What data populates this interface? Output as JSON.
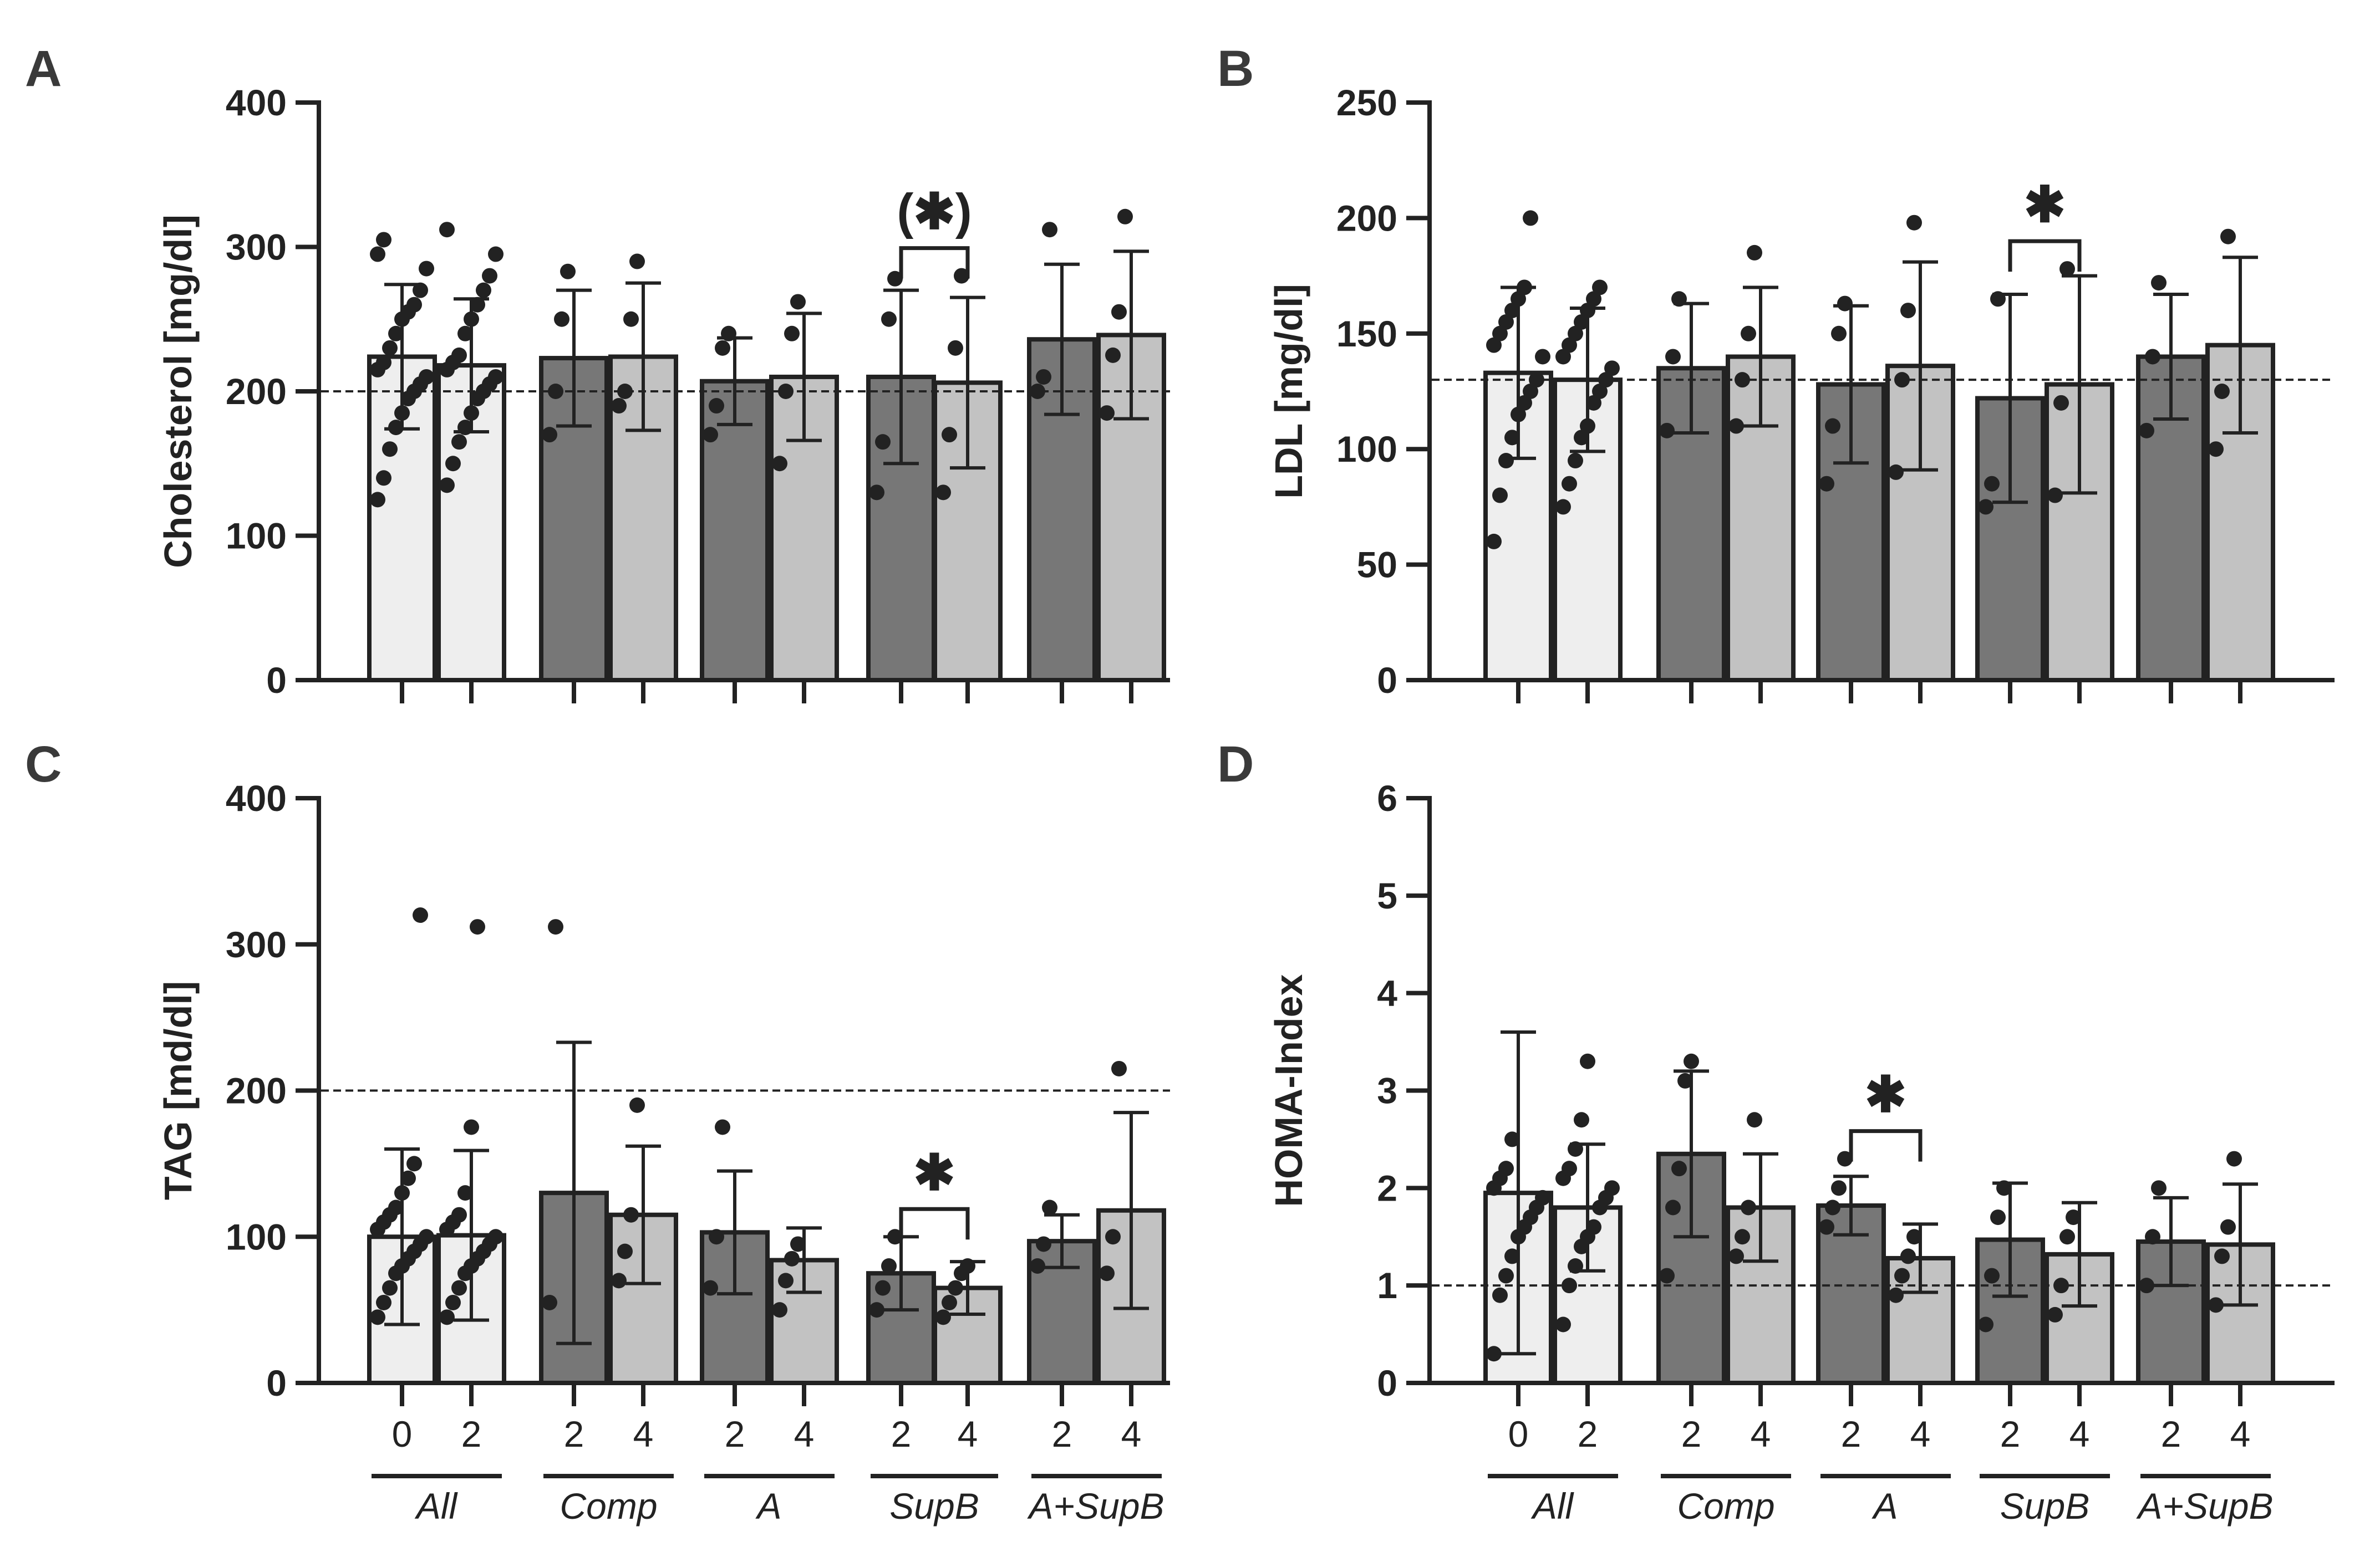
{
  "chart_data": [
    {
      "panel": "A",
      "type": "bar",
      "ylabel": "Cholesterol [mg/dl]",
      "ylim": [
        0,
        400
      ],
      "yticks": [
        0,
        100,
        200,
        300,
        400
      ],
      "reference_line": 200,
      "xtick_labels": [],
      "groups": [],
      "bars": [
        {
          "mean": 224,
          "sd": 50,
          "points": [
            125,
            140,
            160,
            175,
            185,
            195,
            200,
            205,
            210,
            215,
            220,
            230,
            240,
            250,
            255,
            260,
            270,
            285,
            295,
            305
          ]
        },
        {
          "mean": 218,
          "sd": 46,
          "points": [
            135,
            150,
            165,
            175,
            185,
            195,
            200,
            205,
            210,
            215,
            220,
            225,
            240,
            250,
            260,
            270,
            280,
            295,
            312
          ]
        },
        {
          "mean": 223,
          "sd": 47,
          "points": [
            170,
            200,
            250,
            283
          ]
        },
        {
          "mean": 224,
          "sd": 51,
          "points": [
            190,
            200,
            250,
            290
          ]
        },
        {
          "mean": 207,
          "sd": 30,
          "points": [
            170,
            190,
            230,
            240
          ]
        },
        {
          "mean": 210,
          "sd": 44,
          "points": [
            150,
            200,
            240,
            262
          ]
        },
        {
          "mean": 210,
          "sd": 60,
          "points": [
            130,
            165,
            250,
            278
          ]
        },
        {
          "mean": 206,
          "sd": 59,
          "points": [
            130,
            170,
            230,
            280
          ]
        },
        {
          "mean": 236,
          "sd": 52,
          "points": [
            200,
            210,
            312
          ]
        },
        {
          "mean": 239,
          "sd": 58,
          "points": [
            185,
            225,
            255,
            321
          ]
        }
      ],
      "significance": [
        {
          "from": 6,
          "to": 7,
          "label": "(✱)"
        }
      ]
    },
    {
      "panel": "B",
      "type": "bar",
      "ylabel": "LDL [mg/dl]",
      "ylim": [
        0,
        250
      ],
      "yticks": [
        0,
        50,
        100,
        150,
        200,
        250
      ],
      "reference_line": 130,
      "xtick_labels": [],
      "groups": [],
      "bars": [
        {
          "mean": 133,
          "sd": 37,
          "points": [
            60,
            80,
            95,
            105,
            115,
            120,
            125,
            130,
            140,
            145,
            150,
            155,
            160,
            165,
            170,
            200
          ]
        },
        {
          "mean": 130,
          "sd": 31,
          "points": [
            75,
            85,
            95,
            105,
            110,
            120,
            125,
            130,
            135,
            140,
            145,
            150,
            155,
            160,
            165,
            170
          ]
        },
        {
          "mean": 135,
          "sd": 28,
          "points": [
            108,
            140,
            165
          ]
        },
        {
          "mean": 140,
          "sd": 30,
          "points": [
            110,
            130,
            150,
            185
          ]
        },
        {
          "mean": 128,
          "sd": 34,
          "points": [
            85,
            110,
            150,
            163
          ]
        },
        {
          "mean": 136,
          "sd": 45,
          "points": [
            90,
            130,
            160,
            198
          ]
        },
        {
          "mean": 122,
          "sd": 45,
          "points": [
            75,
            85,
            165
          ]
        },
        {
          "mean": 128,
          "sd": 47,
          "points": [
            80,
            120,
            178
          ]
        },
        {
          "mean": 140,
          "sd": 27,
          "points": [
            108,
            140,
            172
          ]
        },
        {
          "mean": 145,
          "sd": 38,
          "points": [
            100,
            125,
            192
          ]
        }
      ],
      "significance": [
        {
          "from": 6,
          "to": 7,
          "label": "✱"
        }
      ]
    },
    {
      "panel": "C",
      "type": "bar",
      "ylabel": "TAG [md/dl]",
      "ylim": [
        0,
        400
      ],
      "yticks": [
        0,
        100,
        200,
        300,
        400
      ],
      "reference_line": 200,
      "xtick_labels": [
        "0",
        "2",
        "2",
        "4",
        "2",
        "4",
        "2",
        "4",
        "2",
        "4"
      ],
      "groups": [
        "All",
        "Comp",
        "A",
        "SupB",
        "A+SupB"
      ],
      "bars": [
        {
          "mean": 100,
          "sd": 60,
          "points": [
            45,
            55,
            65,
            75,
            80,
            85,
            90,
            95,
            100,
            105,
            110,
            115,
            120,
            130,
            140,
            150,
            320
          ]
        },
        {
          "mean": 101,
          "sd": 58,
          "points": [
            45,
            55,
            65,
            75,
            80,
            85,
            90,
            95,
            100,
            105,
            110,
            115,
            130,
            175,
            312
          ]
        },
        {
          "mean": 130,
          "sd": 103,
          "points": [
            55,
            312
          ]
        },
        {
          "mean": 115,
          "sd": 47,
          "points": [
            70,
            90,
            115,
            190
          ]
        },
        {
          "mean": 103,
          "sd": 42,
          "points": [
            65,
            100,
            175
          ]
        },
        {
          "mean": 84,
          "sd": 22,
          "points": [
            50,
            70,
            85,
            95
          ]
        },
        {
          "mean": 75,
          "sd": 25,
          "points": [
            50,
            65,
            80,
            100
          ]
        },
        {
          "mean": 65,
          "sd": 18,
          "points": [
            45,
            55,
            65,
            75,
            80
          ]
        },
        {
          "mean": 97,
          "sd": 18,
          "points": [
            80,
            95,
            120
          ]
        },
        {
          "mean": 118,
          "sd": 67,
          "points": [
            75,
            100,
            215
          ]
        }
      ],
      "significance": [
        {
          "from": 6,
          "to": 7,
          "label": "✱"
        }
      ]
    },
    {
      "panel": "D",
      "type": "bar",
      "ylabel": "HOMA-Index",
      "ylim": [
        0,
        6
      ],
      "yticks": [
        0,
        1,
        2,
        3,
        4,
        5,
        6
      ],
      "reference_line": 1,
      "xtick_labels": [
        "0",
        "2",
        "2",
        "4",
        "2",
        "4",
        "2",
        "4",
        "2",
        "4"
      ],
      "groups": [
        "All",
        "Comp",
        "A",
        "SupB",
        "A+SupB"
      ],
      "bars": [
        {
          "mean": 1.95,
          "sd": 1.65,
          "points": [
            0.3,
            0.9,
            1.1,
            1.3,
            1.5,
            1.6,
            1.7,
            1.8,
            1.9,
            2.0,
            2.1,
            2.2,
            2.5
          ]
        },
        {
          "mean": 1.8,
          "sd": 0.65,
          "points": [
            0.6,
            1.0,
            1.2,
            1.4,
            1.5,
            1.6,
            1.8,
            1.9,
            2.0,
            2.1,
            2.2,
            2.4,
            2.7,
            3.3
          ]
        },
        {
          "mean": 2.35,
          "sd": 0.85,
          "points": [
            1.1,
            1.8,
            2.2,
            3.1,
            3.3
          ]
        },
        {
          "mean": 1.8,
          "sd": 0.55,
          "points": [
            1.3,
            1.5,
            1.8,
            2.7
          ]
        },
        {
          "mean": 1.82,
          "sd": 0.3,
          "points": [
            1.6,
            1.8,
            2.0,
            2.3
          ]
        },
        {
          "mean": 1.28,
          "sd": 0.35,
          "points": [
            0.9,
            1.1,
            1.3,
            1.5
          ]
        },
        {
          "mean": 1.47,
          "sd": 0.58,
          "points": [
            0.6,
            1.1,
            1.7,
            2.0
          ]
        },
        {
          "mean": 1.32,
          "sd": 0.53,
          "points": [
            0.7,
            1.0,
            1.5,
            1.7
          ]
        },
        {
          "mean": 1.45,
          "sd": 0.45,
          "points": [
            1.0,
            1.5,
            2.0
          ]
        },
        {
          "mean": 1.42,
          "sd": 0.62,
          "points": [
            0.8,
            1.3,
            1.6,
            2.3
          ]
        }
      ],
      "significance": [
        {
          "from": 4,
          "to": 5,
          "label": "✱"
        }
      ]
    }
  ]
}
